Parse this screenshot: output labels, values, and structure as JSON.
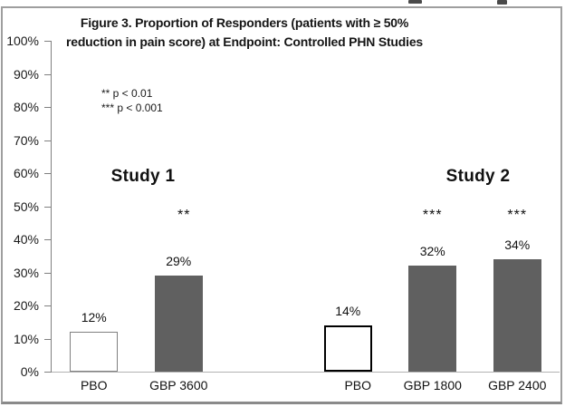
{
  "chart_data": {
    "type": "bar",
    "title_lines": [
      "Figure 3. Proportion of Responders (patients with ≥ 50%",
      "reduction in pain score) at Endpoint: Controlled PHN Studies"
    ],
    "notes": [
      "** p < 0.01",
      "*** p < 0.001"
    ],
    "group_labels": [
      "Study 1",
      "Study 2"
    ],
    "categories": [
      "PBO",
      "GBP 3600",
      "PBO",
      "GBP 1800",
      "GBP 2400"
    ],
    "bars": [
      {
        "label": "PBO",
        "value": 12,
        "value_label": "12%",
        "sig": "",
        "fill": "#ffffff",
        "border": "#808080",
        "border_px": 1,
        "slot": 0,
        "group": "Study 1"
      },
      {
        "label": "GBP 3600",
        "value": 29,
        "value_label": "29%",
        "sig": "**",
        "fill": "#606060",
        "border": "",
        "border_px": 0,
        "slot": 1,
        "group": "Study 1"
      },
      {
        "label": "PBO",
        "value": 14,
        "value_label": "14%",
        "sig": "",
        "fill": "#ffffff",
        "border": "#000000",
        "border_px": 2,
        "slot": 3,
        "group": "Study 2"
      },
      {
        "label": "GBP 1800",
        "value": 32,
        "value_label": "32%",
        "sig": "***",
        "fill": "#606060",
        "border": "",
        "border_px": 0,
        "slot": 4,
        "group": "Study 2"
      },
      {
        "label": "GBP 2400",
        "value": 34,
        "value_label": "34%",
        "sig": "***",
        "fill": "#606060",
        "border": "",
        "border_px": 0,
        "slot": 5,
        "group": "Study 2"
      }
    ],
    "y_ticks": [
      0,
      10,
      20,
      30,
      40,
      50,
      60,
      70,
      80,
      90,
      100
    ],
    "y_tick_labels": [
      "0%",
      "10%",
      "20%",
      "30%",
      "40%",
      "50%",
      "60%",
      "70%",
      "80%",
      "90%",
      "100%"
    ],
    "ylim": [
      0,
      100
    ],
    "grid": false,
    "legend_position": "upper-left-notes",
    "colors": {
      "bar_gray": "#606060",
      "pbo_border_study1": "#808080",
      "pbo_border_study2": "#000000",
      "axis": "#808080",
      "baseline": "#b3b3b3",
      "frame": "#9e9e9e"
    }
  }
}
